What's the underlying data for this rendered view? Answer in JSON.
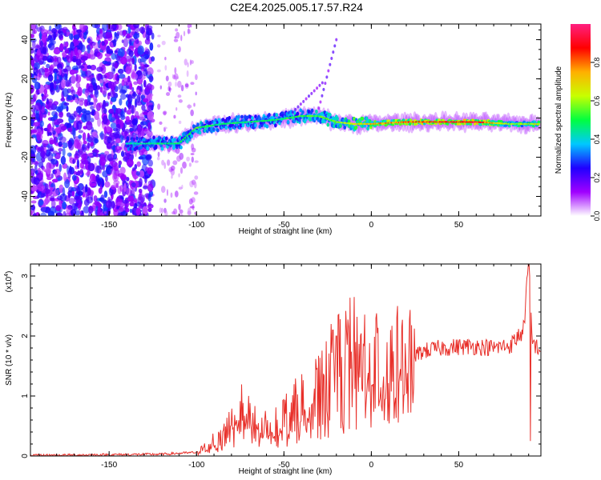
{
  "title": "C2E4.2025.005.17.57.R24",
  "chart_data": [
    {
      "type": "heatmap",
      "xlabel": "Height of straight line (km)",
      "ylabel": "Frequency (Hz)",
      "xlim": [
        -195,
        97
      ],
      "ylim": [
        -50,
        48
      ],
      "x_ticks": [
        -150,
        -100,
        -50,
        0,
        50
      ],
      "y_ticks": [
        -40,
        -20,
        0,
        20,
        40
      ],
      "colorbar": {
        "label": "Normalized spectral amplitude",
        "range": [
          0,
          1
        ],
        "ticks": [
          0.0,
          0.2,
          0.4,
          0.6,
          0.8
        ],
        "colors": [
          "#ffffff",
          "#a000ff",
          "#2000ff",
          "#00c8ff",
          "#00ff40",
          "#c8ff00",
          "#ffb000",
          "#ff0000",
          "#ff2080"
        ]
      },
      "ridge": [
        {
          "x": -135,
          "y": -13,
          "amp": 0.45
        },
        {
          "x": -120,
          "y": -13,
          "amp": 0.5
        },
        {
          "x": -110,
          "y": -13,
          "amp": 0.5
        },
        {
          "x": -100,
          "y": -5,
          "amp": 0.55
        },
        {
          "x": -85,
          "y": -3,
          "amp": 0.5
        },
        {
          "x": -70,
          "y": -2,
          "amp": 0.5
        },
        {
          "x": -55,
          "y": -1,
          "amp": 0.5
        },
        {
          "x": -40,
          "y": 1,
          "amp": 0.55
        },
        {
          "x": -30,
          "y": 1,
          "amp": 0.55
        },
        {
          "x": -20,
          "y": -2,
          "amp": 0.6
        },
        {
          "x": -10,
          "y": -3,
          "amp": 0.7
        },
        {
          "x": 0,
          "y": -3,
          "amp": 0.75
        },
        {
          "x": 20,
          "y": -2,
          "amp": 0.85
        },
        {
          "x": 40,
          "y": -2,
          "amp": 0.9
        },
        {
          "x": 60,
          "y": -2,
          "amp": 0.95
        },
        {
          "x": 80,
          "y": -3,
          "amp": 0.6
        },
        {
          "x": 95,
          "y": -3,
          "amp": 0.7
        }
      ]
    },
    {
      "type": "line",
      "xlabel": "Height of straight line (km)",
      "ylabel": "SNR (10 * v/v)",
      "y_multiplier_label": "(x10",
      "y_multiplier_exp": "4",
      "y_multiplier_close": ")",
      "xlim": [
        -195,
        97
      ],
      "ylim": [
        0,
        3.2
      ],
      "x_ticks": [
        -150,
        -100,
        -50,
        0,
        50
      ],
      "y_ticks": [
        0,
        1,
        2,
        3
      ],
      "color": "#e8302a",
      "envelope": [
        {
          "x": -195,
          "y": 0.01
        },
        {
          "x": -120,
          "y": 0.03
        },
        {
          "x": -100,
          "y": 0.06
        },
        {
          "x": -90,
          "y": 0.25
        },
        {
          "x": -80,
          "y": 0.6
        },
        {
          "x": -75,
          "y": 0.85
        },
        {
          "x": -68,
          "y": 0.55
        },
        {
          "x": -60,
          "y": 0.5
        },
        {
          "x": -50,
          "y": 0.65
        },
        {
          "x": -40,
          "y": 0.9
        },
        {
          "x": -30,
          "y": 1.1
        },
        {
          "x": -20,
          "y": 1.5
        },
        {
          "x": -10,
          "y": 1.7
        },
        {
          "x": 0,
          "y": 1.6
        },
        {
          "x": 10,
          "y": 1.55
        },
        {
          "x": 20,
          "y": 1.6
        },
        {
          "x": 30,
          "y": 1.75
        },
        {
          "x": 40,
          "y": 1.8
        },
        {
          "x": 50,
          "y": 1.82
        },
        {
          "x": 60,
          "y": 1.83
        },
        {
          "x": 70,
          "y": 1.8
        },
        {
          "x": 80,
          "y": 1.85
        },
        {
          "x": 87,
          "y": 2.1
        },
        {
          "x": 90,
          "y": 3.2
        },
        {
          "x": 92,
          "y": 1.9
        },
        {
          "x": 97,
          "y": 1.75
        }
      ],
      "spikes": [
        {
          "x": -22,
          "y": 2.1
        },
        {
          "x": -20,
          "y": 2.0
        },
        {
          "x": -13,
          "y": 2.15
        },
        {
          "x": -9,
          "y": 1.9
        },
        {
          "x": 11,
          "y": 2.1
        },
        {
          "x": 90,
          "y": 3.2
        },
        {
          "x": 91,
          "y": 0.25
        }
      ]
    }
  ]
}
